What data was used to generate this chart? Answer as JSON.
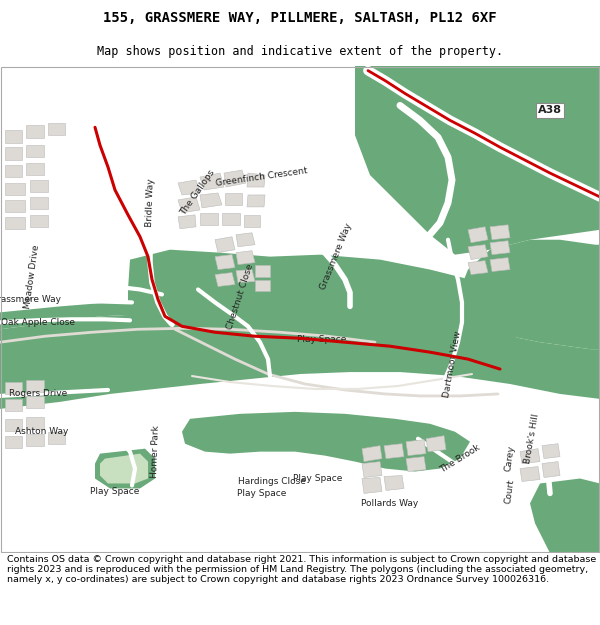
{
  "title": "155, GRASSMERE WAY, PILLMERE, SALTASH, PL12 6XF",
  "subtitle": "Map shows position and indicative extent of the property.",
  "footer": "Contains OS data © Crown copyright and database right 2021. This information is subject to Crown copyright and database rights 2023 and is reproduced with the permission of HM Land Registry. The polygons (including the associated geometry, namely x, y co-ordinates) are subject to Crown copyright and database rights 2023 Ordnance Survey 100026316.",
  "bg_color": "#ffffff",
  "map_bg": "#f0ede8",
  "green_color": "#6aaa7a",
  "light_green": "#c8e0c0",
  "building_color": "#dddad5",
  "road_color": "#ffffff",
  "red_line_color": "#cc0000",
  "title_fontsize": 10,
  "subtitle_fontsize": 8.5,
  "footer_fontsize": 6.8
}
